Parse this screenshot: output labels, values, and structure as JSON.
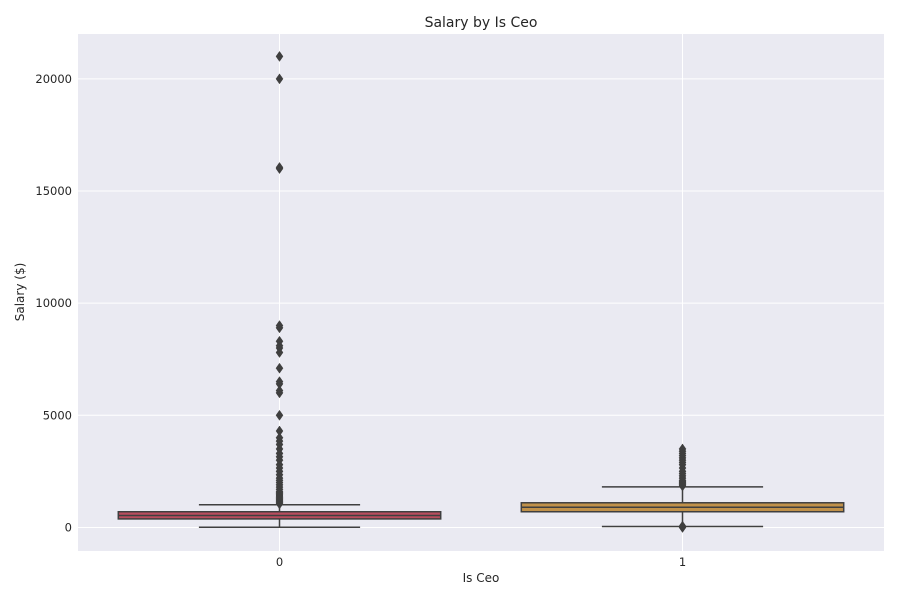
{
  "chart_data": {
    "type": "box",
    "title": "Salary by Is Ceo",
    "xlabel": "Is Ceo",
    "ylabel": "Salary ($)",
    "categories": [
      "0",
      "1"
    ],
    "ylim": [
      -1050,
      22000
    ],
    "yticks": [
      0,
      5000,
      10000,
      15000,
      20000
    ],
    "grid": true,
    "boxes": [
      {
        "category": "0",
        "color": "#b94d5e",
        "q1": 380,
        "median": 530,
        "q3": 700,
        "whisker_low": 10,
        "whisker_high": 1010,
        "outliers": [
          1050,
          1100,
          1150,
          1200,
          1250,
          1300,
          1350,
          1400,
          1450,
          1500,
          1550,
          1600,
          1700,
          1800,
          1900,
          2000,
          2100,
          2200,
          2350,
          2500,
          2650,
          2800,
          3000,
          3150,
          3300,
          3500,
          3700,
          3850,
          4000,
          4300,
          5000,
          6000,
          6100,
          6400,
          6500,
          7100,
          7800,
          8000,
          8100,
          8300,
          8900,
          9000,
          16000,
          16050,
          20000,
          21000
        ]
      },
      {
        "category": "1",
        "color": "#c0914a",
        "q1": 700,
        "median": 900,
        "q3": 1100,
        "whisker_low": 40,
        "whisker_high": 1810,
        "outliers": [
          0,
          20,
          60,
          1850,
          1900,
          1950,
          2000,
          2050,
          2100,
          2200,
          2300,
          2400,
          2500,
          2650,
          2800,
          2900,
          3000,
          3100,
          3200,
          3300,
          3400,
          3500
        ]
      }
    ]
  },
  "colors": {
    "plot_background": "#eaeaf2",
    "grid": "#ffffff",
    "lines": "#3f3f3f",
    "text": "#262626"
  }
}
